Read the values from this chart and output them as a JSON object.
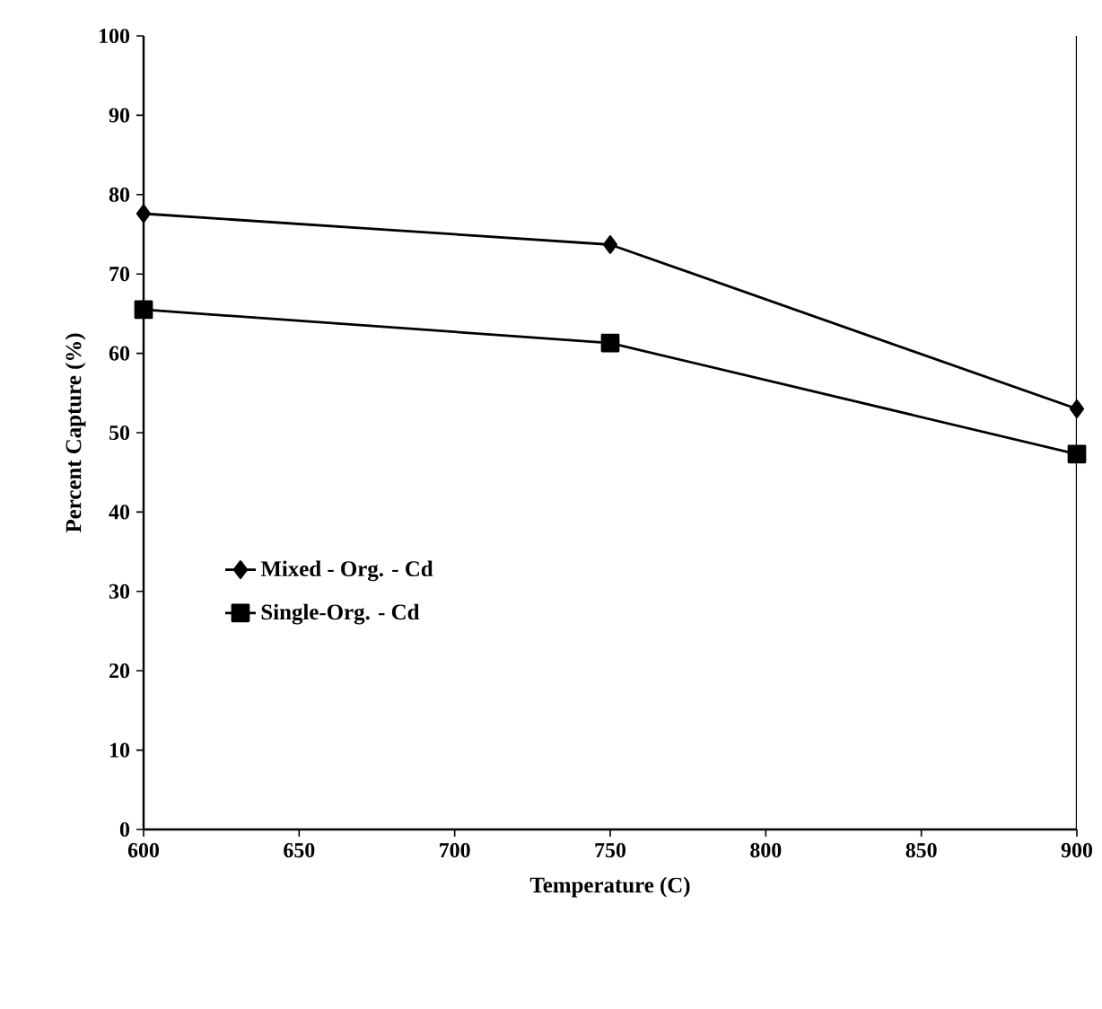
{
  "chart_data": {
    "type": "line",
    "xlabel": "Temperature (C)",
    "ylabel": "Percent Capture (%)",
    "x": [
      600,
      750,
      900
    ],
    "series": [
      {
        "name": "Mixed - Org. - Cd",
        "color": "#000000",
        "marker": "diamond",
        "values": [
          77.6,
          73.7,
          53.0
        ]
      },
      {
        "name": "Single-Org. - Cd",
        "color": "#000000",
        "marker": "square",
        "values": [
          65.5,
          61.3,
          47.3
        ]
      }
    ],
    "xlim": [
      600,
      900
    ],
    "ylim": [
      0,
      100
    ],
    "xticks": [
      600,
      650,
      700,
      750,
      800,
      850,
      900
    ],
    "yticks": [
      0,
      10,
      20,
      30,
      40,
      50,
      60,
      70,
      80,
      90,
      100
    ],
    "grid": false,
    "legend": "left",
    "line_style": "solid"
  }
}
